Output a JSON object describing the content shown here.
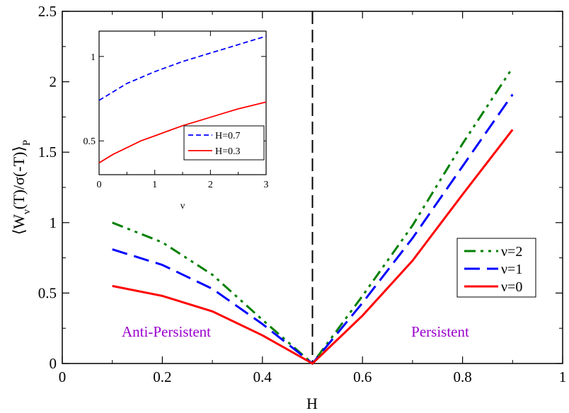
{
  "chart_data": [
    {
      "type": "line",
      "xlabel": "H",
      "ylabel": "⟨W_ν(T)/σ(-T)⟩_P",
      "xlim": [
        0,
        1
      ],
      "ylim": [
        0,
        2.5
      ],
      "x_ticks": [
        "0",
        "0.2",
        "0.4",
        "0.6",
        "0.8",
        "1"
      ],
      "y_ticks": [
        "0",
        "0.5",
        "1",
        "1.5",
        "2",
        "2.5"
      ],
      "x_tick_values": [
        0,
        0.2,
        0.4,
        0.6,
        0.8,
        1.0
      ],
      "y_tick_values": [
        0,
        0.5,
        1.0,
        1.5,
        2.0,
        2.5
      ],
      "vertical_line": 0.5,
      "grid": false,
      "legend_position": "right",
      "series": [
        {
          "name": "ν=2",
          "color": "#008000",
          "dash": "dashdotdot",
          "x": [
            0.1,
            0.2,
            0.3,
            0.4,
            0.5,
            0.6,
            0.7,
            0.8,
            0.9
          ],
          "y": [
            1.0,
            0.86,
            0.63,
            0.31,
            0.0,
            0.48,
            0.98,
            1.56,
            2.1
          ]
        },
        {
          "name": "ν=1",
          "color": "#0000ff",
          "dash": "dash",
          "x": [
            0.1,
            0.2,
            0.3,
            0.4,
            0.5,
            0.6,
            0.7,
            0.8,
            0.9
          ],
          "y": [
            0.81,
            0.7,
            0.53,
            0.28,
            0.0,
            0.43,
            0.89,
            1.4,
            1.91
          ]
        },
        {
          "name": "ν=0",
          "color": "#ff0000",
          "dash": "solid",
          "x": [
            0.1,
            0.2,
            0.3,
            0.4,
            0.5,
            0.6,
            0.7,
            0.8,
            0.9
          ],
          "y": [
            0.55,
            0.48,
            0.37,
            0.2,
            0.0,
            0.34,
            0.73,
            1.2,
            1.66
          ]
        }
      ],
      "annotations": [
        {
          "text": "Anti-Persistent",
          "color": "#9900cc"
        },
        {
          "text": "Persistent",
          "color": "#9900cc"
        }
      ]
    },
    {
      "type": "line",
      "xlabel": "ν",
      "ylabel": "",
      "xlim": [
        0,
        3
      ],
      "ylim": [
        0.3,
        1.15
      ],
      "x_ticks": [
        "0",
        "1",
        "2",
        "3"
      ],
      "y_ticks": [
        "0.5",
        "1"
      ],
      "x_tick_values": [
        0,
        1,
        2,
        3
      ],
      "y_tick_values": [
        0.5,
        1.0
      ],
      "grid": false,
      "legend_position": "bottom-right",
      "series": [
        {
          "name": "H=0.7",
          "color": "#0000ff",
          "dash": "dash",
          "x": [
            0,
            0.25,
            0.5,
            0.75,
            1.0,
            1.25,
            1.5,
            1.75,
            2.0,
            2.25,
            2.5,
            2.75,
            3.0
          ],
          "y": [
            0.74,
            0.79,
            0.84,
            0.875,
            0.91,
            0.94,
            0.97,
            0.995,
            1.02,
            1.045,
            1.07,
            1.095,
            1.12
          ]
        },
        {
          "name": "H=0.3",
          "color": "#ff0000",
          "dash": "solid",
          "x": [
            0,
            0.25,
            0.5,
            0.75,
            1.0,
            1.25,
            1.5,
            1.75,
            2.0,
            2.25,
            2.5,
            2.75,
            3.0
          ],
          "y": [
            0.37,
            0.42,
            0.46,
            0.5,
            0.53,
            0.56,
            0.59,
            0.615,
            0.64,
            0.665,
            0.69,
            0.71,
            0.73
          ]
        }
      ]
    }
  ]
}
